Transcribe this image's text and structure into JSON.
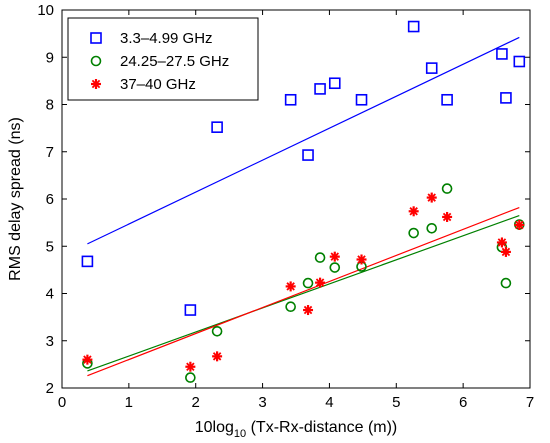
{
  "chart_data": {
    "type": "scatter",
    "xlabel_prefix": "10log",
    "xlabel_sub": "10",
    "xlabel_suffix": " (Tx-Rx-distance (m))",
    "ylabel": "RMS delay spread (ns)",
    "xlim": [
      0,
      7
    ],
    "ylim": [
      2,
      10
    ],
    "xticks": [
      0,
      1,
      2,
      3,
      4,
      5,
      6,
      7
    ],
    "yticks": [
      2,
      3,
      4,
      5,
      6,
      7,
      8,
      9,
      10
    ],
    "grid": false,
    "legend_position": "top-left",
    "series": [
      {
        "name": "3.3–4.99 GHz",
        "marker": "square",
        "color": "#0000ff",
        "x": [
          0.38,
          1.92,
          2.32,
          3.42,
          3.68,
          3.86,
          4.08,
          4.48,
          5.26,
          5.53,
          5.76,
          6.58,
          6.64,
          6.84
        ],
        "y": [
          4.68,
          3.65,
          7.52,
          8.1,
          6.93,
          8.33,
          8.45,
          8.1,
          9.65,
          8.77,
          8.1,
          9.07,
          8.14,
          8.91
        ],
        "fit": [
          [
            0.38,
            5.05
          ],
          [
            6.84,
            9.42
          ]
        ]
      },
      {
        "name": "24.25–27.5 GHz",
        "marker": "circle",
        "color": "#008000",
        "x": [
          0.38,
          1.92,
          2.32,
          3.42,
          3.68,
          3.86,
          4.08,
          4.48,
          5.26,
          5.53,
          5.76,
          6.58,
          6.64,
          6.84
        ],
        "y": [
          2.52,
          2.22,
          3.2,
          3.72,
          4.22,
          4.76,
          4.55,
          4.57,
          5.28,
          5.38,
          6.22,
          4.98,
          4.22,
          5.46
        ],
        "fit": [
          [
            0.38,
            2.36
          ],
          [
            6.84,
            5.65
          ]
        ]
      },
      {
        "name": "37–40 GHz",
        "marker": "star",
        "color": "#ff0000",
        "x": [
          0.38,
          1.92,
          2.32,
          3.42,
          3.68,
          3.86,
          4.08,
          4.48,
          5.26,
          5.53,
          5.76,
          6.58,
          6.64,
          6.84
        ],
        "y": [
          2.6,
          2.45,
          2.67,
          4.15,
          3.65,
          4.23,
          4.78,
          4.72,
          5.74,
          6.03,
          5.62,
          5.08,
          4.88,
          5.45
        ],
        "fit": [
          [
            0.38,
            2.26
          ],
          [
            6.84,
            5.82
          ]
        ]
      }
    ]
  }
}
